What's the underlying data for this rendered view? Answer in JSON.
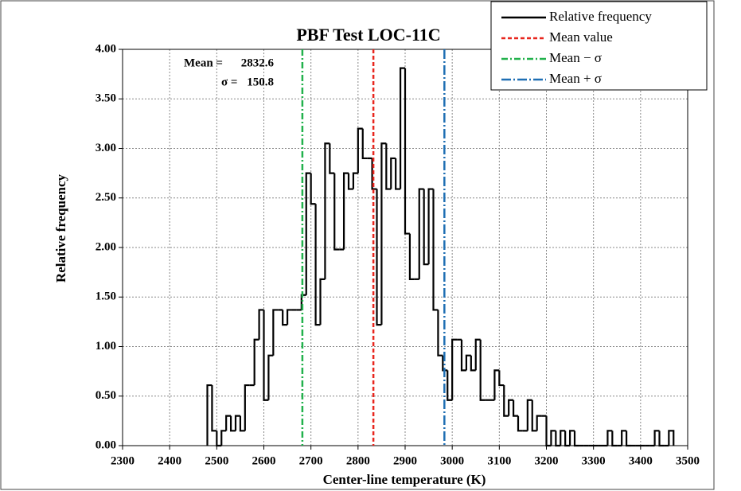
{
  "chart_data": {
    "type": "histogram",
    "title": "PBF Test LOC-11C",
    "xlabel": "Center-line temperature (K)",
    "ylabel": "Relative frequency",
    "series": [
      {
        "name": "Relative frequency",
        "color": "#000000",
        "bins": [
          2480,
          2490,
          2500,
          2510,
          2520,
          2530,
          2540,
          2550,
          2560,
          2570,
          2580,
          2590,
          2600,
          2610,
          2620,
          2630,
          2640,
          2650,
          2660,
          2670,
          2680,
          2690,
          2700,
          2710,
          2720,
          2730,
          2740,
          2750,
          2760,
          2770,
          2780,
          2790,
          2800,
          2810,
          2820,
          2830,
          2840,
          2850,
          2860,
          2870,
          2880,
          2890,
          2900,
          2910,
          2920,
          2930,
          2940,
          2950,
          2960,
          2970,
          2980,
          2990,
          3000,
          3010,
          3020,
          3030,
          3040,
          3050,
          3060,
          3070,
          3080,
          3090,
          3100,
          3110,
          3120,
          3130,
          3140,
          3150,
          3160,
          3170,
          3180,
          3190,
          3200,
          3210,
          3220,
          3230,
          3240,
          3250,
          3260,
          3270,
          3280,
          3290,
          3300,
          3310,
          3320,
          3330,
          3340,
          3350,
          3360,
          3370,
          3380,
          3390,
          3400,
          3410,
          3420,
          3430,
          3440,
          3450,
          3460,
          3470
        ],
        "values": [
          0.61,
          0.15,
          0,
          0.15,
          0.3,
          0.15,
          0.3,
          0.15,
          0.61,
          0.61,
          1.07,
          1.37,
          0.46,
          0.91,
          1.37,
          1.37,
          1.22,
          1.37,
          1.37,
          1.37,
          1.52,
          2.75,
          2.44,
          1.22,
          1.68,
          3.05,
          2.75,
          1.98,
          1.98,
          2.75,
          2.59,
          2.75,
          3.2,
          2.9,
          2.9,
          2.59,
          1.22,
          3.05,
          2.59,
          2.9,
          2.59,
          3.81,
          2.14,
          1.68,
          1.68,
          2.59,
          1.83,
          2.59,
          1.37,
          0.91,
          0.76,
          0.46,
          1.07,
          1.07,
          0.76,
          0.91,
          0.76,
          1.07,
          0.46,
          0.46,
          0.46,
          0.76,
          0.61,
          0.3,
          0.46,
          0.3,
          0.15,
          0.15,
          0.46,
          0.15,
          0.3,
          0.3,
          0,
          0.15,
          0,
          0.15,
          0,
          0.15,
          0,
          0,
          0,
          0,
          0,
          0,
          0,
          0.15,
          0,
          0,
          0.15,
          0,
          0,
          0,
          0,
          0,
          0,
          0.15,
          0,
          0,
          0.15
        ]
      }
    ],
    "vlines": [
      {
        "name": "Mean value",
        "color": "#e8261e",
        "dash": "5,3",
        "value": 2832.6
      },
      {
        "name": "Mean − σ",
        "color": "#22b14c",
        "dash": "8,3,2,3",
        "value": 2681.8
      },
      {
        "name": "Mean + σ",
        "color": "#1f6fb4",
        "dash": "12,3,2,3",
        "value": 2983.4
      }
    ],
    "annotations": [
      {
        "label": "Mean =",
        "value": 2832.6
      },
      {
        "label": "σ =",
        "value": 150.8
      }
    ],
    "xlim": [
      2300,
      3500
    ],
    "xticks": [
      2300,
      2400,
      2500,
      2600,
      2700,
      2800,
      2900,
      3000,
      3100,
      3200,
      3300,
      3400,
      3500
    ],
    "ylim": [
      0,
      4
    ],
    "yticks": [
      {
        "value": 0,
        "label": "0.00"
      },
      {
        "value": 0.5,
        "label": "0.50"
      },
      {
        "value": 1,
        "label": "1.00"
      },
      {
        "value": 1.5,
        "label": "1.50"
      },
      {
        "value": 2,
        "label": "2.00"
      },
      {
        "value": 2.5,
        "label": "2.50"
      },
      {
        "value": 3,
        "label": "3.00"
      },
      {
        "value": 3.5,
        "label": "3.50"
      },
      {
        "value": 4,
        "label": "4.00"
      }
    ],
    "grid": true,
    "legend": "upper right"
  }
}
